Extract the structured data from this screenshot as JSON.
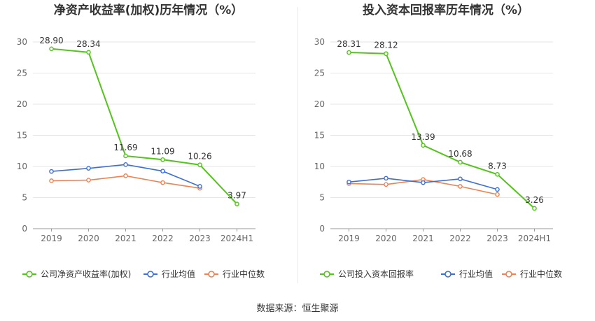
{
  "source": "数据来源：恒生聚源",
  "chart_data": [
    {
      "type": "line",
      "title": "净资产收益率(加权)历年情况（%）",
      "categories": [
        "2019",
        "2020",
        "2021",
        "2022",
        "2023",
        "2024H1"
      ],
      "ylim": [
        0,
        30
      ],
      "yticks": [
        0,
        5,
        10,
        15,
        20,
        25,
        30
      ],
      "grid": true,
      "legend_position": "bottom",
      "series": [
        {
          "name": "公司净资产收益率(加权)",
          "color": "#52c41a",
          "values": [
            28.9,
            28.34,
            11.69,
            11.09,
            10.26,
            3.97
          ],
          "labels": [
            "28.90",
            "28.34",
            "11.69",
            "11.09",
            "10.26",
            "3.97"
          ]
        },
        {
          "name": "行业均值",
          "color": "#3b6fd6",
          "values": [
            9.2,
            9.7,
            10.3,
            9.25,
            6.8,
            null
          ]
        },
        {
          "name": "行业中位数",
          "color": "#f08050",
          "values": [
            7.7,
            7.8,
            8.5,
            7.4,
            6.5,
            null
          ]
        }
      ]
    },
    {
      "type": "line",
      "title": "投入资本回报率历年情况（%）",
      "categories": [
        "2019",
        "2020",
        "2021",
        "2022",
        "2023",
        "2024H1"
      ],
      "ylim": [
        0,
        30
      ],
      "yticks": [
        0,
        5,
        10,
        15,
        20,
        25,
        30
      ],
      "grid": true,
      "legend_position": "bottom",
      "series": [
        {
          "name": "公司投入资本回报率",
          "color": "#52c41a",
          "values": [
            28.31,
            28.12,
            13.39,
            10.68,
            8.73,
            3.26
          ],
          "labels": [
            "28.31",
            "28.12",
            "13.39",
            "10.68",
            "8.73",
            "3.26"
          ]
        },
        {
          "name": "行业均值",
          "color": "#3b6fd6",
          "values": [
            7.5,
            8.1,
            7.4,
            8.0,
            6.3,
            null
          ]
        },
        {
          "name": "行业中位数",
          "color": "#f08050",
          "values": [
            7.25,
            7.1,
            7.9,
            6.8,
            5.5,
            null
          ]
        }
      ]
    }
  ]
}
